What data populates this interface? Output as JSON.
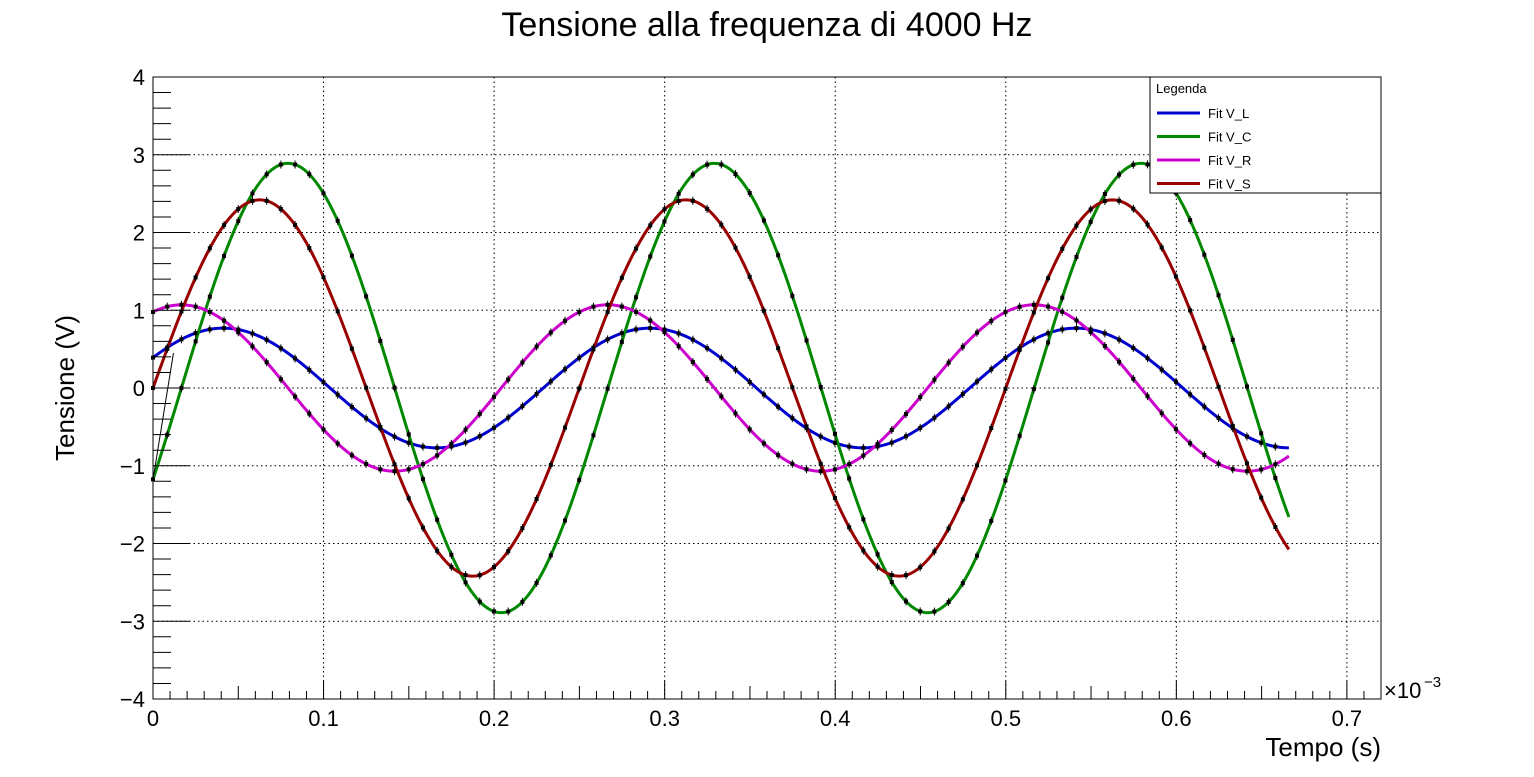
{
  "chart_data": {
    "type": "line",
    "title": "Tensione alla frequenza di 4000 Hz",
    "xlabel": "Tempo (s)",
    "ylabel": "Tensione (V)",
    "x_exponent_base": "×10",
    "x_exponent_power": "−3",
    "xlim": [
      0,
      0.72
    ],
    "ylim": [
      -4,
      4
    ],
    "x_ticks": [
      0,
      0.1,
      0.2,
      0.3,
      0.4,
      0.5,
      0.6,
      0.7
    ],
    "x_tick_labels": [
      "0",
      "0.1",
      "0.2",
      "0.3",
      "0.4",
      "0.5",
      "0.6",
      "0.7"
    ],
    "y_ticks": [
      -4,
      -3,
      -2,
      -1,
      0,
      1,
      2,
      3,
      4
    ],
    "y_tick_labels": [
      "−4",
      "−3",
      "−2",
      "−1",
      "0",
      "1",
      "2",
      "3",
      "4"
    ],
    "grid": true,
    "legend_position": "top-right",
    "legend_header": "Legenda",
    "x_range_data": [
      0,
      0.666
    ],
    "points_step": 0.00833,
    "frequency_per_xunit": 4.0,
    "series": [
      {
        "name": "Fit V_L",
        "color": "#0000cc",
        "amplitude": 0.77,
        "phase": 0.5319
      },
      {
        "name": "Fit V_C",
        "color": "#008800",
        "amplitude": 2.89,
        "phase": -0.4189
      },
      {
        "name": "Fit V_R",
        "color": "#cc00cc",
        "amplitude": 1.07,
        "phase": 1.1519
      },
      {
        "name": "Fit V_S",
        "color": "#990000",
        "amplitude": 2.42,
        "phase": 0.0
      }
    ]
  }
}
